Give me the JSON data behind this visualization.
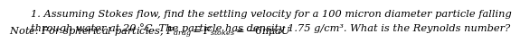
{
  "line1": "1. Assuming Stokes flow, find the settling velocity for a 100 micron diameter particle falling",
  "line2": "through water at 20 °C. The particle has density 1.75 g/cm³. What is the Reynolds number?",
  "note_text": "Note: For spherical particles, $F_{drag} = F_{stokes} = -6\\pi\\mu aU$",
  "background_color": "#ffffff",
  "text_color": "#000000",
  "fontsize_body": 8.2,
  "fontsize_note": 8.2
}
